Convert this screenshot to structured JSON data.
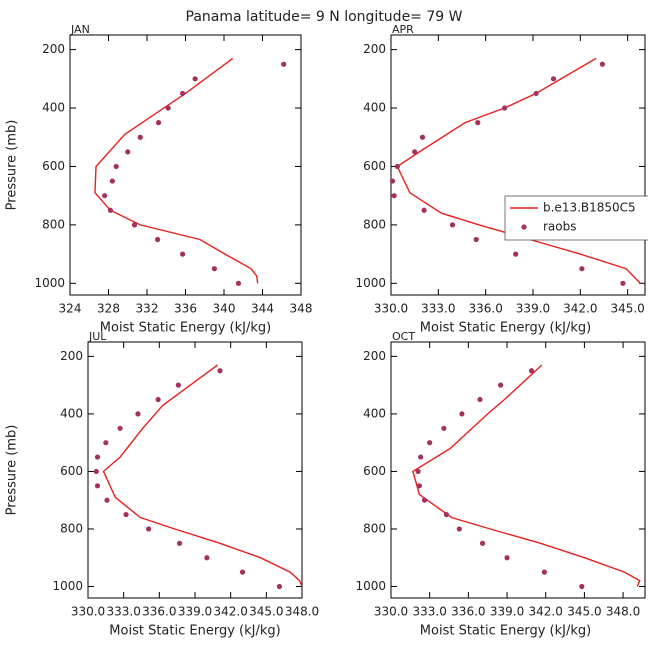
{
  "title": "Panama  latitude= 9 N longitude= 79 W",
  "chart_data": [
    {
      "type": "line",
      "title": "JAN",
      "xlabel": "Moist Static Energy (kJ/kg)",
      "ylabel": "Pressure (mb)",
      "xlim": [
        324,
        348
      ],
      "xticks": [
        324,
        328,
        332,
        336,
        340,
        344,
        348
      ],
      "ylim": [
        1040,
        150
      ],
      "yticks": [
        200,
        400,
        600,
        800,
        1000
      ],
      "series": [
        {
          "type": "line",
          "color": "#e8201c",
          "pressure": [
            230,
            350,
            490,
            600,
            690,
            750,
            800,
            850,
            900,
            950,
            975,
            1000
          ],
          "values": [
            340.9,
            336.0,
            329.7,
            326.7,
            326.6,
            328.2,
            331.3,
            337.5,
            340.1,
            342.8,
            343.4,
            343.5
          ]
        },
        {
          "type": "scatter",
          "color": "#a3305f",
          "pressure": [
            250,
            300,
            350,
            400,
            450,
            500,
            550,
            600,
            650,
            700,
            750,
            800,
            850,
            900,
            950,
            1000
          ],
          "values": [
            346.2,
            337.0,
            335.7,
            334.2,
            333.2,
            331.3,
            330.0,
            328.8,
            328.4,
            327.6,
            328.2,
            330.7,
            333.1,
            335.7,
            339.0,
            341.5
          ]
        }
      ]
    },
    {
      "type": "line",
      "title": "APR",
      "xlabel": "Moist Static Energy (kJ/kg)",
      "legend": "right",
      "xlim": [
        330,
        346.1
      ],
      "xticks": [
        {
          "value": 330,
          "label": "330.0"
        },
        {
          "value": 333,
          "label": "333.0"
        },
        {
          "value": 336,
          "label": "336.0"
        },
        {
          "value": 339,
          "label": "339.0"
        },
        {
          "value": 342,
          "label": "342.0"
        },
        {
          "value": 345,
          "label": "345.0"
        }
      ],
      "ylim": [
        1040,
        150
      ],
      "yticks": [
        200,
        400,
        600,
        800,
        1000
      ],
      "series": [
        {
          "type": "line",
          "name": "b.e13.B1850C5",
          "color": "#e8201c",
          "pressure": [
            230,
            350,
            400,
            450,
            550,
            600,
            690,
            760,
            800,
            850,
            900,
            950,
            1000
          ],
          "values": [
            343.0,
            339.2,
            337.2,
            334.7,
            331.8,
            330.4,
            331.2,
            333.2,
            335.6,
            338.8,
            342.0,
            344.9,
            345.8
          ]
        },
        {
          "type": "scatter",
          "name": "raobs",
          "color": "#a3305f",
          "pressure": [
            250,
            300,
            350,
            400,
            450,
            500,
            550,
            600,
            650,
            700,
            750,
            800,
            850,
            900,
            950,
            1000
          ],
          "values": [
            343.4,
            340.3,
            339.2,
            337.2,
            335.5,
            332.0,
            331.5,
            330.4,
            330.1,
            330.2,
            332.1,
            333.9,
            335.4,
            337.9,
            342.1,
            344.7
          ]
        }
      ]
    },
    {
      "type": "line",
      "title": "JUL",
      "xlabel": "Moist Static Energy (kJ/kg)",
      "ylabel": "Pressure (mb)",
      "xlim": [
        330,
        348
      ],
      "xticks": [
        {
          "value": 330,
          "label": "330.0"
        },
        {
          "value": 333,
          "label": "333.0"
        },
        {
          "value": 336,
          "label": "336.0"
        },
        {
          "value": 339,
          "label": "339.0"
        },
        {
          "value": 342,
          "label": "342.0"
        },
        {
          "value": 345,
          "label": "345.0"
        },
        {
          "value": 348,
          "label": "348.0"
        }
      ],
      "ylim": [
        1040,
        150
      ],
      "yticks": [
        200,
        400,
        600,
        800,
        1000
      ],
      "series": [
        {
          "type": "line",
          "color": "#e8201c",
          "pressure": [
            230,
            370,
            450,
            550,
            600,
            690,
            760,
            800,
            850,
            900,
            950,
            980,
            1000
          ],
          "values": [
            340.9,
            336.3,
            334.6,
            332.7,
            331.3,
            332.3,
            334.4,
            337.3,
            341.1,
            344.5,
            347.0,
            347.8,
            348.0
          ]
        },
        {
          "type": "scatter",
          "color": "#a3305f",
          "pressure": [
            250,
            300,
            350,
            400,
            450,
            500,
            550,
            600,
            650,
            700,
            750,
            800,
            850,
            900,
            950,
            1000
          ],
          "values": [
            341.1,
            337.6,
            335.9,
            334.2,
            332.7,
            331.5,
            330.8,
            330.7,
            330.8,
            331.6,
            333.2,
            335.1,
            337.7,
            340.0,
            343.0,
            346.1
          ]
        }
      ]
    },
    {
      "type": "line",
      "title": "OCT",
      "xlabel": "Moist Static Energy (kJ/kg)",
      "xlim": [
        330,
        349.7
      ],
      "xticks": [
        {
          "value": 330,
          "label": "330.0"
        },
        {
          "value": 333,
          "label": "333.0"
        },
        {
          "value": 336,
          "label": "336.0"
        },
        {
          "value": 339,
          "label": "339.0"
        },
        {
          "value": 342,
          "label": "342.0"
        },
        {
          "value": 345,
          "label": "345.0"
        },
        {
          "value": 348,
          "label": "348.0"
        }
      ],
      "ylim": [
        1040,
        150
      ],
      "yticks": [
        200,
        400,
        600,
        800,
        1000
      ],
      "series": [
        {
          "type": "line",
          "color": "#e8201c",
          "pressure": [
            230,
            350,
            400,
            520,
            600,
            680,
            760,
            800,
            850,
            900,
            950,
            980,
            1000
          ],
          "values": [
            341.7,
            338.8,
            337.5,
            334.6,
            331.7,
            332.2,
            334.7,
            337.7,
            341.6,
            345.0,
            348.1,
            349.3,
            349.1
          ]
        },
        {
          "type": "scatter",
          "color": "#a3305f",
          "pressure": [
            250,
            300,
            350,
            400,
            450,
            500,
            550,
            600,
            650,
            700,
            750,
            800,
            850,
            900,
            950,
            1000
          ],
          "values": [
            340.9,
            338.5,
            336.9,
            335.5,
            334.1,
            333.0,
            332.3,
            332.1,
            332.2,
            332.6,
            334.3,
            335.3,
            337.1,
            339.0,
            341.9,
            344.8
          ]
        }
      ]
    }
  ]
}
